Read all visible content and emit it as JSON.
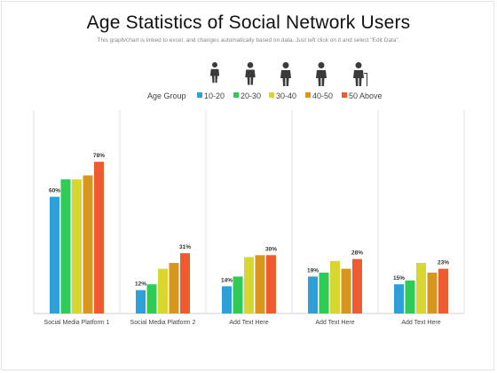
{
  "title": "Age Statistics of Social Network Users",
  "subtitle": "This graph/chart is linked to excel, and changes automatically based on data. Just left click on it and select \"Edit Data\".",
  "icons": [
    "boy-icon",
    "man-icon",
    "businessman-icon",
    "adult-man-icon",
    "elderly-man-icon"
  ],
  "chart_data": {
    "type": "bar",
    "title": "Age Statistics of Social Network Users",
    "legend_title": "Age Group",
    "legend_position": "top",
    "categories": [
      "Social Media Platform 1",
      "Social Media Platform 2",
      "Add Text Here",
      "Add Text Here",
      "Add Text Here"
    ],
    "series": [
      {
        "name": "10-20",
        "color": "#2e9fd9",
        "values": [
          60,
          12,
          14,
          19,
          15
        ]
      },
      {
        "name": "20-30",
        "color": "#2ecc55",
        "values": [
          69,
          15,
          19,
          21,
          17
        ]
      },
      {
        "name": "30-40",
        "color": "#d7d72f",
        "values": [
          69,
          23,
          29,
          27,
          26
        ]
      },
      {
        "name": "40-50",
        "color": "#d9961c",
        "values": [
          71,
          26,
          30,
          23,
          21
        ]
      },
      {
        "name": "50 Above",
        "color": "#ef5a2f",
        "values": [
          78,
          31,
          30,
          28,
          23
        ]
      }
    ],
    "data_labels": [
      {
        "category_index": 0,
        "series_index": 0,
        "text": "60%"
      },
      {
        "category_index": 0,
        "series_index": 4,
        "text": "78%"
      },
      {
        "category_index": 1,
        "series_index": 0,
        "text": "12%"
      },
      {
        "category_index": 1,
        "series_index": 4,
        "text": "31%"
      },
      {
        "category_index": 2,
        "series_index": 0,
        "text": "14%"
      },
      {
        "category_index": 2,
        "series_index": 4,
        "text": "30%"
      },
      {
        "category_index": 3,
        "series_index": 0,
        "text": "19%"
      },
      {
        "category_index": 3,
        "series_index": 4,
        "text": "28%"
      },
      {
        "category_index": 4,
        "series_index": 0,
        "text": "15%"
      },
      {
        "category_index": 4,
        "series_index": 4,
        "text": "23%"
      }
    ],
    "ylim": [
      0,
      100
    ],
    "grid": false
  }
}
